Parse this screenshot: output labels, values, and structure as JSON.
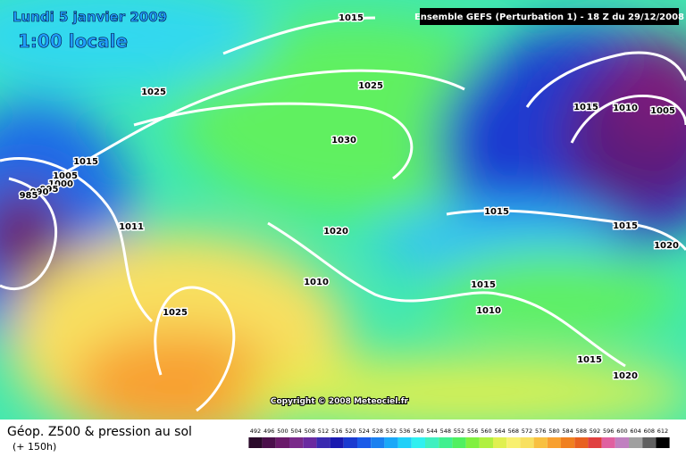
{
  "header": {
    "date": "Lundi 5 janvier 2009",
    "time": "1:00 locale",
    "run": "Ensemble GEFS (Perturbation 1)  - 18 Z du 29/12/2008"
  },
  "footer": {
    "title": "Géop. Z500 & pression au sol",
    "subtitle": "(+ 150h)"
  },
  "copyright": "Copyright © 2008 Meteociel.fr",
  "isobars": [
    "1015",
    "1025",
    "1025",
    "1030",
    "1015",
    "1005",
    "1000",
    "995",
    "990",
    "985",
    "1011",
    "1020",
    "1010",
    "1025",
    "1015",
    "1010",
    "1005",
    "1015",
    "1015",
    "1020",
    "1015",
    "1010",
    "1015",
    "1020"
  ],
  "colorbar": {
    "labels": [
      492,
      496,
      500,
      504,
      508,
      512,
      516,
      520,
      524,
      528,
      532,
      536,
      540,
      544,
      548,
      552,
      556,
      560,
      564,
      568,
      572,
      576,
      580,
      584,
      588,
      592,
      596,
      600,
      604,
      608,
      612
    ],
    "colors": [
      "#2a0a2a",
      "#4b0f4b",
      "#6a1a6a",
      "#7a2a8a",
      "#6a2aa0",
      "#3a2ab0",
      "#1a1ab0",
      "#1a3ad0",
      "#1a5ae8",
      "#1a80f0",
      "#1aa8f8",
      "#20d0f8",
      "#30f0f0",
      "#40f0c0",
      "#40f090",
      "#50f060",
      "#80f040",
      "#b0f040",
      "#e0f050",
      "#f8f070",
      "#f8e060",
      "#f8c040",
      "#f8a030",
      "#f08020",
      "#e86020",
      "#e04040",
      "#e060a0",
      "#c080c0",
      "#a0a0a0",
      "#606060",
      "#000000"
    ]
  }
}
